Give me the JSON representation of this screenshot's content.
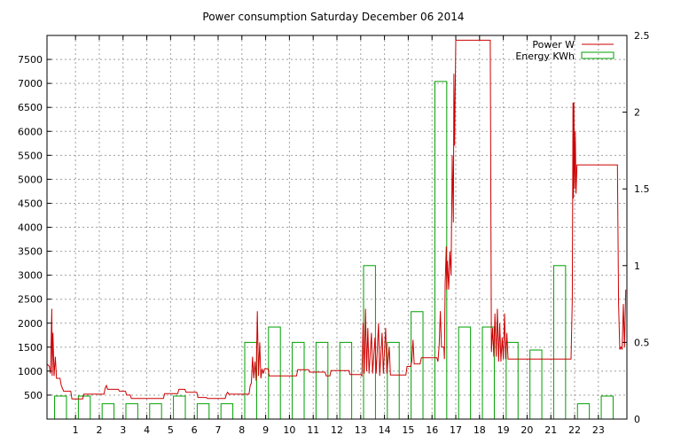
{
  "chart_data": {
    "type": "bar+line",
    "title": "Power consumption Saturday December 06 2014",
    "xlabel": "",
    "ylabel": "",
    "y2label": "",
    "xlim": [
      -0.2,
      24.2
    ],
    "ylim": [
      0,
      8000
    ],
    "y2lim": [
      0,
      2.5
    ],
    "grid": true,
    "legend_position": "top-right",
    "x_ticks": [
      "1",
      "2",
      "3",
      "4",
      "5",
      "6",
      "7",
      "8",
      "9",
      "10",
      "11",
      "12",
      "13",
      "14",
      "15",
      "16",
      "17",
      "18",
      "19",
      "20",
      "21",
      "22",
      "23"
    ],
    "y_ticks": [
      500,
      1000,
      1500,
      2000,
      2500,
      3000,
      3500,
      4000,
      4500,
      5000,
      5500,
      6000,
      6500,
      7000,
      7500
    ],
    "y2_ticks": [
      "0",
      "0.5",
      "1",
      "1.5",
      "2",
      "2.5"
    ],
    "series": [
      {
        "name": "Power W",
        "kind": "line",
        "axis": "y",
        "color": "#cc0000",
        "points": [
          [
            -0.2,
            1150
          ],
          [
            -0.1,
            1100
          ],
          [
            -0.05,
            950
          ],
          [
            0.0,
            2300
          ],
          [
            0.02,
            900
          ],
          [
            0.05,
            1800
          ],
          [
            0.1,
            900
          ],
          [
            0.15,
            1300
          ],
          [
            0.2,
            850
          ],
          [
            0.35,
            850
          ],
          [
            0.4,
            700
          ],
          [
            0.5,
            580
          ],
          [
            0.8,
            580
          ],
          [
            0.85,
            420
          ],
          [
            1.3,
            420
          ],
          [
            1.35,
            520
          ],
          [
            1.8,
            520
          ],
          [
            2.0,
            520
          ],
          [
            2.2,
            520
          ],
          [
            2.25,
            650
          ],
          [
            2.3,
            700
          ],
          [
            2.35,
            620
          ],
          [
            2.8,
            620
          ],
          [
            2.85,
            580
          ],
          [
            3.1,
            580
          ],
          [
            3.15,
            500
          ],
          [
            3.3,
            500
          ],
          [
            3.35,
            430
          ],
          [
            4.7,
            430
          ],
          [
            4.75,
            530
          ],
          [
            5.3,
            530
          ],
          [
            5.35,
            620
          ],
          [
            5.6,
            620
          ],
          [
            5.65,
            560
          ],
          [
            6.1,
            560
          ],
          [
            6.15,
            450
          ],
          [
            6.5,
            450
          ],
          [
            6.55,
            430
          ],
          [
            7.3,
            430
          ],
          [
            7.35,
            520
          ],
          [
            7.4,
            560
          ],
          [
            7.45,
            520
          ],
          [
            8.3,
            520
          ],
          [
            8.35,
            700
          ],
          [
            8.4,
            750
          ],
          [
            8.45,
            1300
          ],
          [
            8.5,
            850
          ],
          [
            8.55,
            1200
          ],
          [
            8.6,
            800
          ],
          [
            8.65,
            2250
          ],
          [
            8.7,
            900
          ],
          [
            8.75,
            1600
          ],
          [
            8.8,
            850
          ],
          [
            8.85,
            1050
          ],
          [
            8.9,
            950
          ],
          [
            8.95,
            1050
          ],
          [
            9.1,
            1050
          ],
          [
            9.15,
            900
          ],
          [
            10.3,
            900
          ],
          [
            10.35,
            1030
          ],
          [
            10.8,
            1030
          ],
          [
            10.85,
            980
          ],
          [
            11.5,
            980
          ],
          [
            11.55,
            900
          ],
          [
            11.7,
            900
          ],
          [
            11.75,
            1010
          ],
          [
            12.5,
            1010
          ],
          [
            12.55,
            930
          ],
          [
            13.0,
            930
          ],
          [
            13.05,
            900
          ],
          [
            13.1,
            2000
          ],
          [
            13.15,
            950
          ],
          [
            13.2,
            2300
          ],
          [
            13.25,
            1000
          ],
          [
            13.3,
            1900
          ],
          [
            13.35,
            950
          ],
          [
            13.45,
            1800
          ],
          [
            13.5,
            950
          ],
          [
            13.6,
            1700
          ],
          [
            13.65,
            950
          ],
          [
            13.75,
            2000
          ],
          [
            13.8,
            900
          ],
          [
            13.9,
            1800
          ],
          [
            13.95,
            950
          ],
          [
            14.05,
            1900
          ],
          [
            14.1,
            950
          ],
          [
            14.2,
            1500
          ],
          [
            14.25,
            920
          ],
          [
            14.9,
            920
          ],
          [
            14.95,
            1100
          ],
          [
            15.1,
            1100
          ],
          [
            15.15,
            1200
          ],
          [
            15.2,
            1650
          ],
          [
            15.25,
            1150
          ],
          [
            15.5,
            1150
          ],
          [
            15.55,
            1280
          ],
          [
            16.2,
            1280
          ],
          [
            16.25,
            1200
          ],
          [
            16.3,
            1550
          ],
          [
            16.35,
            2250
          ],
          [
            16.4,
            1500
          ],
          [
            16.5,
            1500
          ],
          [
            16.52,
            1250
          ],
          [
            16.55,
            2800
          ],
          [
            16.6,
            3600
          ],
          [
            16.62,
            2700
          ],
          [
            16.65,
            3300
          ],
          [
            16.7,
            2700
          ],
          [
            16.75,
            3500
          ],
          [
            16.8,
            3000
          ],
          [
            16.85,
            5500
          ],
          [
            16.9,
            4100
          ],
          [
            16.92,
            7200
          ],
          [
            16.95,
            5700
          ],
          [
            17.0,
            7900
          ],
          [
            17.05,
            7900
          ],
          [
            18.45,
            7900
          ],
          [
            18.5,
            1400
          ],
          [
            18.55,
            1900
          ],
          [
            18.6,
            1300
          ],
          [
            18.65,
            2200
          ],
          [
            18.7,
            1300
          ],
          [
            18.75,
            2300
          ],
          [
            18.8,
            1200
          ],
          [
            18.85,
            2000
          ],
          [
            18.9,
            1200
          ],
          [
            18.95,
            1700
          ],
          [
            19.0,
            1250
          ],
          [
            19.05,
            2200
          ],
          [
            19.1,
            1250
          ],
          [
            19.15,
            1800
          ],
          [
            19.2,
            1250
          ],
          [
            21.85,
            1250
          ],
          [
            21.9,
            2500
          ],
          [
            21.93,
            6600
          ],
          [
            21.95,
            4600
          ],
          [
            21.97,
            6600
          ],
          [
            22.0,
            4800
          ],
          [
            22.03,
            6000
          ],
          [
            22.06,
            4700
          ],
          [
            22.1,
            5300
          ],
          [
            23.8,
            5300
          ],
          [
            23.85,
            2400
          ],
          [
            23.9,
            1450
          ],
          [
            23.95,
            1500
          ],
          [
            24.0,
            1450
          ],
          [
            24.05,
            2400
          ],
          [
            24.1,
            1500
          ],
          [
            24.15,
            2700
          ]
        ]
      },
      {
        "name": "Energy KWh",
        "kind": "bar",
        "axis": "y2",
        "color": "#00a000",
        "x": [
          0,
          1,
          2,
          3,
          4,
          5,
          6,
          7,
          8,
          9,
          10,
          11,
          12,
          13,
          14,
          15,
          16,
          17,
          18,
          19,
          20,
          21,
          22,
          23
        ],
        "values": [
          0.15,
          0.15,
          0.1,
          0.1,
          0.1,
          0.15,
          0.1,
          0.1,
          0.5,
          0.6,
          0.5,
          0.5,
          0.5,
          1.0,
          0.5,
          0.7,
          2.2,
          0.6,
          0.6,
          0.5,
          0.45,
          1.0,
          0.1,
          0.15
        ]
      }
    ]
  }
}
